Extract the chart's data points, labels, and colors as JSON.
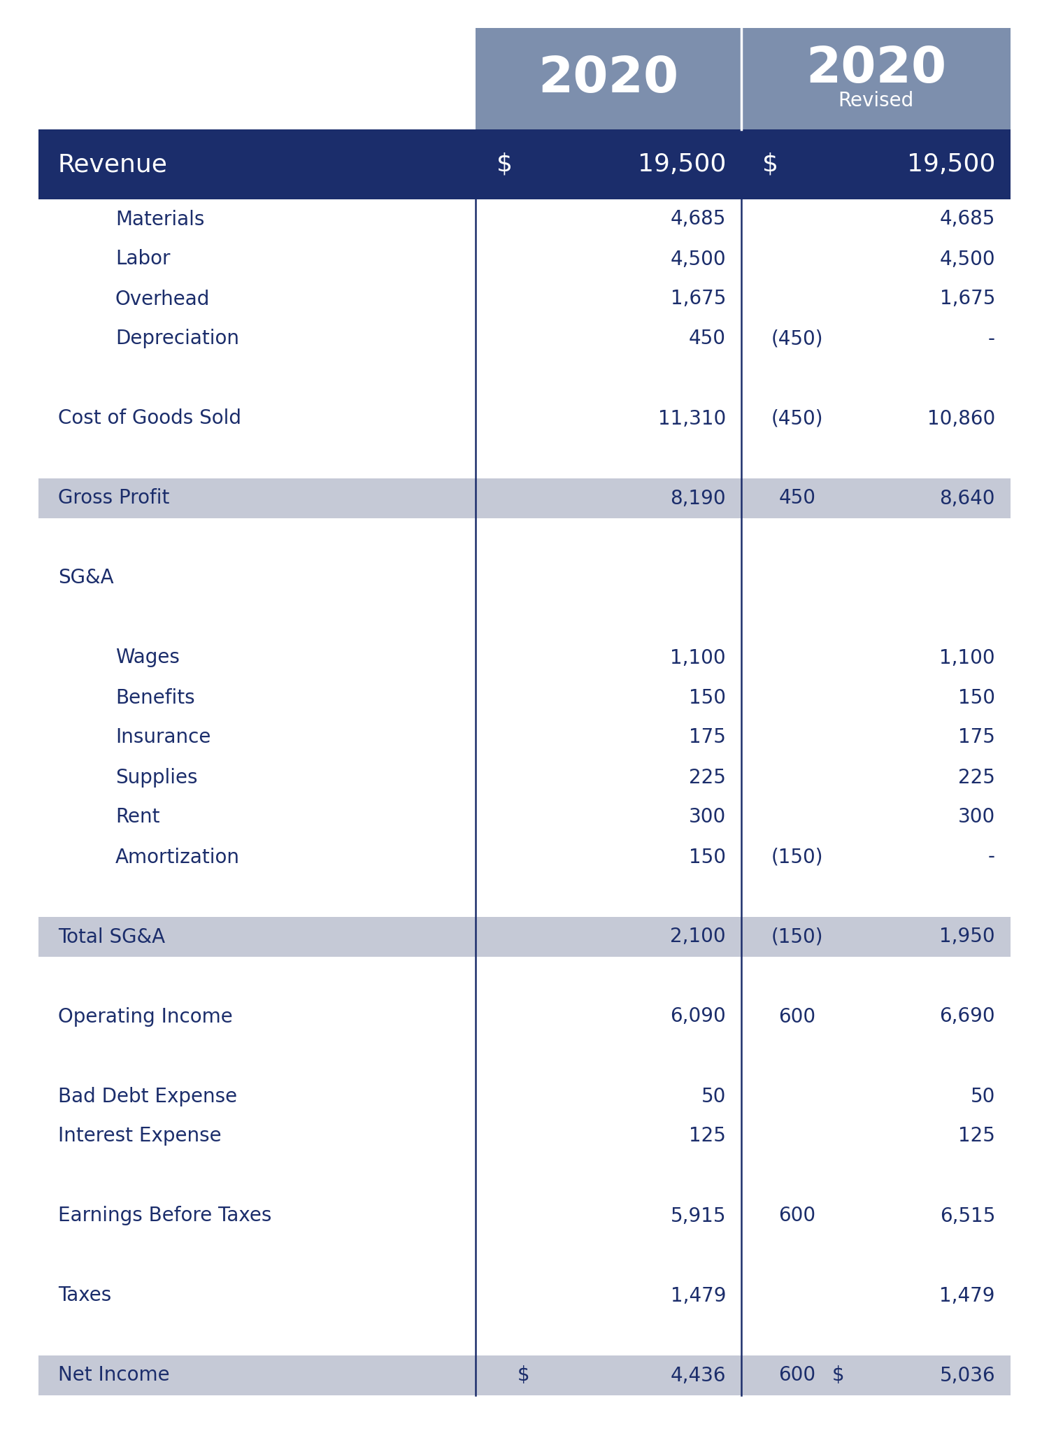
{
  "bg_color": "#ffffff",
  "dark_blue": "#1b2d6b",
  "medium_blue_header": "#7d8fad",
  "light_gray": "#c5c9d6",
  "text_white": "#ffffff",
  "text_dark": "#1b2d6b",
  "rows": [
    {
      "label": "Materials",
      "indent": 2,
      "v1": "4,685",
      "adj": "",
      "v2": "4,685",
      "shade": false
    },
    {
      "label": "Labor",
      "indent": 2,
      "v1": "4,500",
      "adj": "",
      "v2": "4,500",
      "shade": false
    },
    {
      "label": "Overhead",
      "indent": 2,
      "v1": "1,675",
      "adj": "",
      "v2": "1,675",
      "shade": false
    },
    {
      "label": "Depreciation",
      "indent": 2,
      "v1": "450",
      "adj": "(450)",
      "v2": "-",
      "shade": false
    },
    {
      "label": "",
      "indent": 0,
      "v1": "",
      "adj": "",
      "v2": "",
      "shade": false
    },
    {
      "label": "Cost of Goods Sold",
      "indent": 0,
      "v1": "11,310",
      "adj": "(450)",
      "v2": "10,860",
      "shade": false
    },
    {
      "label": "",
      "indent": 0,
      "v1": "",
      "adj": "",
      "v2": "",
      "shade": false
    },
    {
      "label": "Gross Profit",
      "indent": 0,
      "v1": "8,190",
      "adj": "450",
      "v2": "8,640",
      "shade": true
    },
    {
      "label": "",
      "indent": 0,
      "v1": "",
      "adj": "",
      "v2": "",
      "shade": false
    },
    {
      "label": "SG&A",
      "indent": 0,
      "v1": "",
      "adj": "",
      "v2": "",
      "shade": false
    },
    {
      "label": "",
      "indent": 0,
      "v1": "",
      "adj": "",
      "v2": "",
      "shade": false
    },
    {
      "label": "Wages",
      "indent": 2,
      "v1": "1,100",
      "adj": "",
      "v2": "1,100",
      "shade": false
    },
    {
      "label": "Benefits",
      "indent": 2,
      "v1": "150",
      "adj": "",
      "v2": "150",
      "shade": false
    },
    {
      "label": "Insurance",
      "indent": 2,
      "v1": "175",
      "adj": "",
      "v2": "175",
      "shade": false
    },
    {
      "label": "Supplies",
      "indent": 2,
      "v1": "225",
      "adj": "",
      "v2": "225",
      "shade": false
    },
    {
      "label": "Rent",
      "indent": 2,
      "v1": "300",
      "adj": "",
      "v2": "300",
      "shade": false
    },
    {
      "label": "Amortization",
      "indent": 2,
      "v1": "150",
      "adj": "(150)",
      "v2": "-",
      "shade": false
    },
    {
      "label": "",
      "indent": 0,
      "v1": "",
      "adj": "",
      "v2": "",
      "shade": false
    },
    {
      "label": "Total SG&A",
      "indent": 0,
      "v1": "2,100",
      "adj": "(150)",
      "v2": "1,950",
      "shade": true
    },
    {
      "label": "",
      "indent": 0,
      "v1": "",
      "adj": "",
      "v2": "",
      "shade": false
    },
    {
      "label": "Operating Income",
      "indent": 0,
      "v1": "6,090",
      "adj": "600",
      "v2": "6,690",
      "shade": false
    },
    {
      "label": "",
      "indent": 0,
      "v1": "",
      "adj": "",
      "v2": "",
      "shade": false
    },
    {
      "label": "Bad Debt Expense",
      "indent": 0,
      "v1": "50",
      "adj": "",
      "v2": "50",
      "shade": false
    },
    {
      "label": "Interest Expense",
      "indent": 0,
      "v1": "125",
      "adj": "",
      "v2": "125",
      "shade": false
    },
    {
      "label": "",
      "indent": 0,
      "v1": "",
      "adj": "",
      "v2": "",
      "shade": false
    },
    {
      "label": "Earnings Before Taxes",
      "indent": 0,
      "v1": "5,915",
      "adj": "600",
      "v2": "6,515",
      "shade": false
    },
    {
      "label": "",
      "indent": 0,
      "v1": "",
      "adj": "",
      "v2": "",
      "shade": false
    },
    {
      "label": "Taxes",
      "indent": 0,
      "v1": "1,479",
      "adj": "",
      "v2": "1,479",
      "shade": false
    },
    {
      "label": "",
      "indent": 0,
      "v1": "",
      "adj": "",
      "v2": "",
      "shade": false
    },
    {
      "label": "Net Income",
      "indent": 0,
      "v1_dollar": "$",
      "v1": "4,436",
      "adj": "600",
      "v2_dollar": "$",
      "v2": "5,036",
      "shade": true
    }
  ]
}
